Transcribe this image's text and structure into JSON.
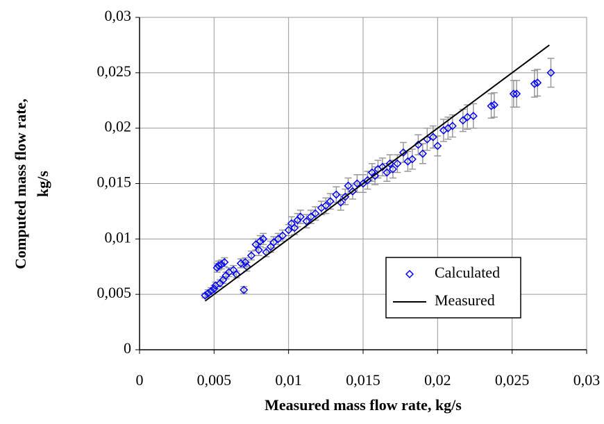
{
  "chart_data": {
    "type": "scatter",
    "xlabel": "Measured mass flow rate, kg/s",
    "ylabel": [
      "Computed mass flow rate,",
      "kg/s"
    ],
    "xlim": [
      0,
      0.03
    ],
    "ylim": [
      0,
      0.03
    ],
    "xticks": [
      0,
      {
        "value": 0.005,
        "label": "0,005"
      },
      {
        "value": 0.01,
        "label": "0,01"
      },
      {
        "value": 0.015,
        "label": "0,015"
      },
      {
        "value": 0.02,
        "label": "0,02"
      },
      {
        "value": 0.025,
        "label": "0,025"
      },
      {
        "value": 0.03,
        "label": "0,03"
      }
    ],
    "yticks": [
      0,
      {
        "value": 0.005,
        "label": "0,005"
      },
      {
        "value": 0.01,
        "label": "0,01"
      },
      {
        "value": 0.015,
        "label": "0,015"
      },
      {
        "value": 0.02,
        "label": "0,02"
      },
      {
        "value": 0.025,
        "label": "0,025"
      },
      {
        "value": 0.03,
        "label": "0,03"
      }
    ],
    "grid": true,
    "legend": "lower right",
    "series": [
      {
        "name": "Calculated",
        "type": "scatter",
        "color": "#0000ff",
        "error_color": "#999999",
        "x": [
          0.0044,
          0.0046,
          0.0048,
          0.005,
          0.0051,
          0.0052,
          0.0053,
          0.0054,
          0.0055,
          0.0056,
          0.0057,
          0.0058,
          0.006,
          0.0063,
          0.0065,
          0.0068,
          0.007,
          0.0071,
          0.0072,
          0.0075,
          0.0078,
          0.008,
          0.0081,
          0.0083,
          0.0085,
          0.0088,
          0.009,
          0.0093,
          0.0096,
          0.01,
          0.0102,
          0.0104,
          0.0106,
          0.0108,
          0.0112,
          0.0115,
          0.0118,
          0.0122,
          0.0125,
          0.0128,
          0.0132,
          0.0135,
          0.0138,
          0.014,
          0.0143,
          0.0146,
          0.015,
          0.0153,
          0.0156,
          0.0158,
          0.016,
          0.0163,
          0.0166,
          0.0168,
          0.017,
          0.0173,
          0.0177,
          0.018,
          0.0183,
          0.0187,
          0.019,
          0.0193,
          0.0197,
          0.02,
          0.0204,
          0.0207,
          0.021,
          0.0217,
          0.022,
          0.0224,
          0.0236,
          0.0238,
          0.0251,
          0.0253,
          0.0265,
          0.0267,
          0.0276
        ],
        "values": [
          0.0049,
          0.0051,
          0.0053,
          0.0055,
          0.0058,
          0.0074,
          0.0076,
          0.006,
          0.0077,
          0.0063,
          0.0079,
          0.0067,
          0.007,
          0.0072,
          0.0068,
          0.0078,
          0.0054,
          0.0079,
          0.0075,
          0.0085,
          0.0095,
          0.009,
          0.0098,
          0.01,
          0.0088,
          0.0093,
          0.0097,
          0.01,
          0.0103,
          0.0108,
          0.0114,
          0.011,
          0.0117,
          0.012,
          0.0116,
          0.012,
          0.0123,
          0.0128,
          0.013,
          0.0134,
          0.014,
          0.0133,
          0.0138,
          0.0148,
          0.0143,
          0.015,
          0.015,
          0.0153,
          0.016,
          0.0157,
          0.0163,
          0.0165,
          0.016,
          0.0168,
          0.0163,
          0.0168,
          0.0178,
          0.017,
          0.0172,
          0.0185,
          0.0177,
          0.019,
          0.0192,
          0.0184,
          0.0198,
          0.02,
          0.0202,
          0.0207,
          0.021,
          0.0211,
          0.022,
          0.0221,
          0.0231,
          0.0231,
          0.024,
          0.0241,
          0.025
        ],
        "error": [
          0.0002,
          0.0003,
          0.0003,
          0.0003,
          0.0003,
          0.0004,
          0.0004,
          0.0003,
          0.0004,
          0.0003,
          0.0004,
          0.0003,
          0.0004,
          0.0004,
          0.0003,
          0.0004,
          0.0003,
          0.0004,
          0.0004,
          0.0004,
          0.0005,
          0.0005,
          0.0005,
          0.0005,
          0.0004,
          0.0005,
          0.0005,
          0.0005,
          0.0005,
          0.0005,
          0.0006,
          0.0006,
          0.0006,
          0.0006,
          0.0006,
          0.0006,
          0.0006,
          0.0006,
          0.0007,
          0.0007,
          0.0007,
          0.0007,
          0.0007,
          0.0007,
          0.0007,
          0.0008,
          0.0008,
          0.0008,
          0.0008,
          0.0008,
          0.0008,
          0.0008,
          0.0008,
          0.0008,
          0.0008,
          0.0008,
          0.0009,
          0.0009,
          0.0009,
          0.0009,
          0.0009,
          0.001,
          0.001,
          0.0009,
          0.001,
          0.001,
          0.001,
          0.001,
          0.0011,
          0.0011,
          0.0011,
          0.0011,
          0.0012,
          0.0012,
          0.0012,
          0.0012,
          0.0013
        ]
      },
      {
        "name": "Measured",
        "type": "line",
        "color": "#000000",
        "x": [
          0.0044,
          0.0275
        ],
        "values": [
          0.0044,
          0.0275
        ]
      }
    ]
  }
}
